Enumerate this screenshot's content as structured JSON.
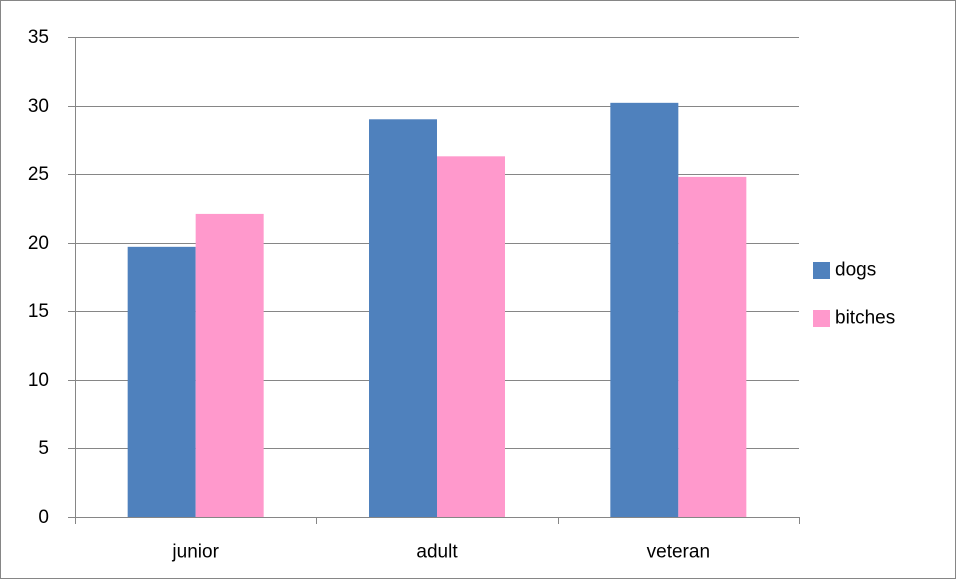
{
  "chart_data": {
    "type": "bar",
    "categories": [
      "junior",
      "adult",
      "veteran"
    ],
    "series": [
      {
        "name": "dogs",
        "values": [
          19.7,
          29.0,
          30.2
        ],
        "color": "#4F81BD"
      },
      {
        "name": "bitches",
        "values": [
          22.1,
          26.3,
          24.8
        ],
        "color": "#FF99CC"
      }
    ],
    "ylim": [
      0,
      35
    ],
    "yticks": [
      0,
      5,
      10,
      15,
      20,
      25,
      30,
      35
    ],
    "grid": true,
    "legend_position": "right",
    "title": "",
    "xlabel": "",
    "ylabel": ""
  }
}
